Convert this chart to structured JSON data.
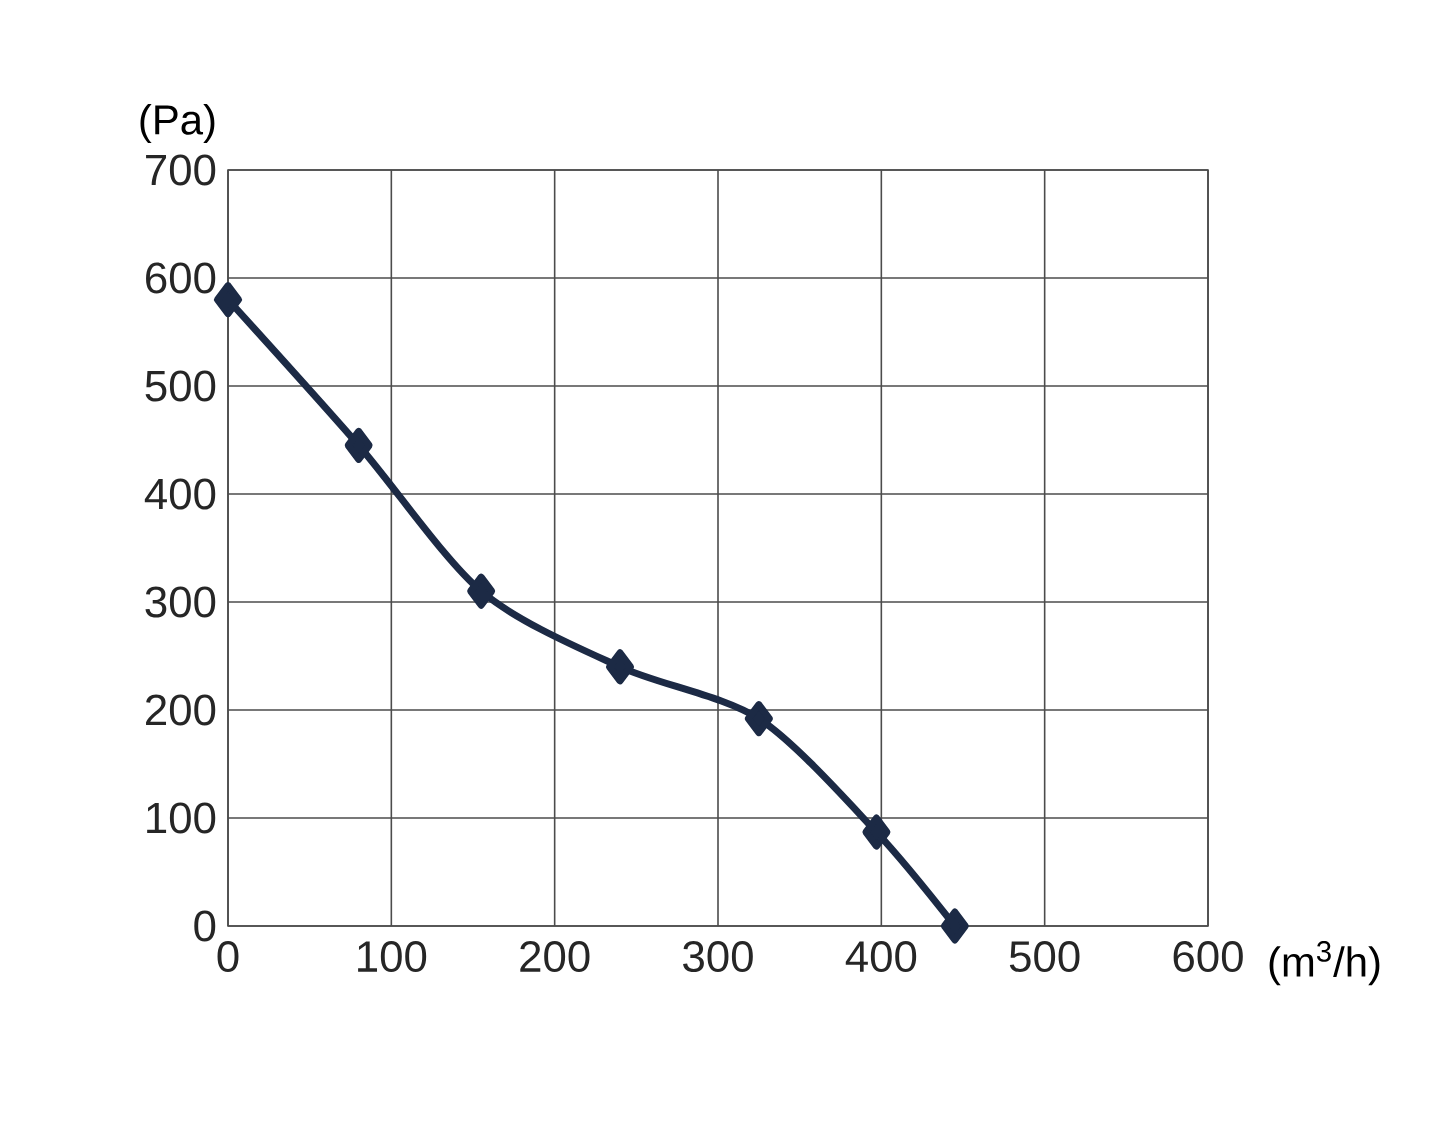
{
  "chart_data": {
    "type": "line",
    "xlabel": "(m$^{3}$/h)",
    "ylabel": "(Pa)",
    "x": [
      0,
      80,
      155,
      240,
      325,
      397,
      445
    ],
    "series": [
      {
        "color": "#1c2a45",
        "values": [
          580,
          445,
          310,
          240,
          192,
          87,
          0
        ]
      }
    ],
    "xlim": [
      0,
      600
    ],
    "xticks": [
      0,
      100,
      200,
      300,
      400,
      500,
      600
    ],
    "ylim": [
      0,
      700
    ],
    "yticks": [
      0,
      100,
      200,
      300,
      400,
      500,
      600,
      700
    ],
    "grid": true,
    "marker": "diamond",
    "line_style": "solid"
  }
}
